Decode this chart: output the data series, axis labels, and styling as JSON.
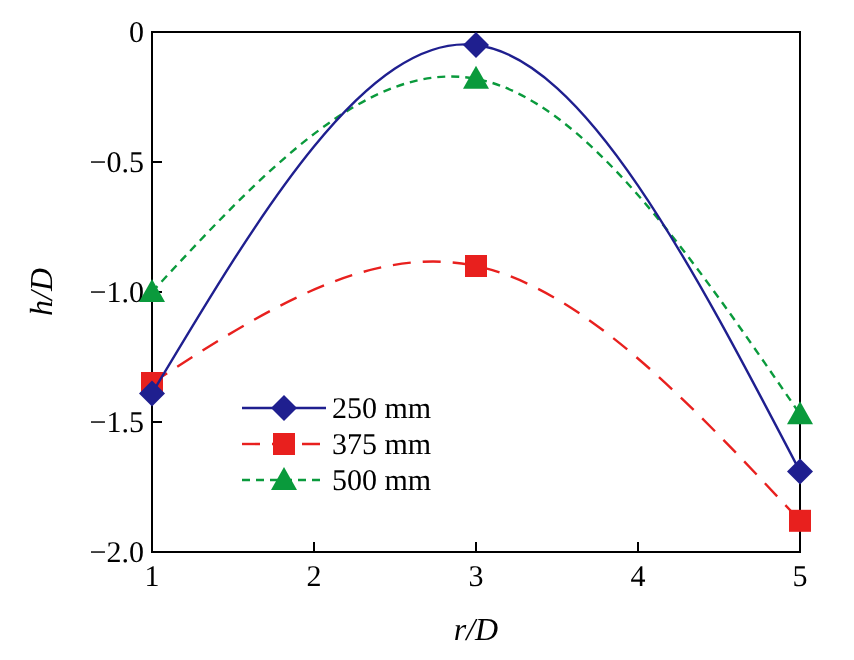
{
  "chart_data": {
    "type": "line",
    "xlabel": "r/D",
    "ylabel": "h/D",
    "x": [
      1,
      3,
      5
    ],
    "xlim": [
      1,
      5
    ],
    "xticks": [
      1,
      2,
      3,
      4,
      5
    ],
    "ylim": [
      -2,
      0
    ],
    "yticks": [
      {
        "value": -2,
        "label": "−2.0"
      },
      {
        "value": -1.5,
        "label": "−1.5"
      },
      {
        "value": -1,
        "label": "−1.0"
      },
      {
        "value": -0.5,
        "label": "−0.5"
      },
      {
        "value": 0,
        "label": "0"
      }
    ],
    "grid": false,
    "legend": "bottom left",
    "series": [
      {
        "name": "250 mm",
        "color": "#1f1f8f",
        "values": [
          -1.39,
          -0.05,
          -1.69
        ],
        "marker": "diamond",
        "line_style": "solid"
      },
      {
        "name": "375 mm",
        "color": "#e8201e",
        "values": [
          -1.35,
          -0.9,
          -1.88
        ],
        "marker": "square",
        "line_style": "dashed"
      },
      {
        "name": "500 mm",
        "color": "#0a9a3c",
        "values": [
          -1.0,
          -0.18,
          -1.47
        ],
        "marker": "triangle",
        "line_style": "dotted"
      }
    ]
  }
}
